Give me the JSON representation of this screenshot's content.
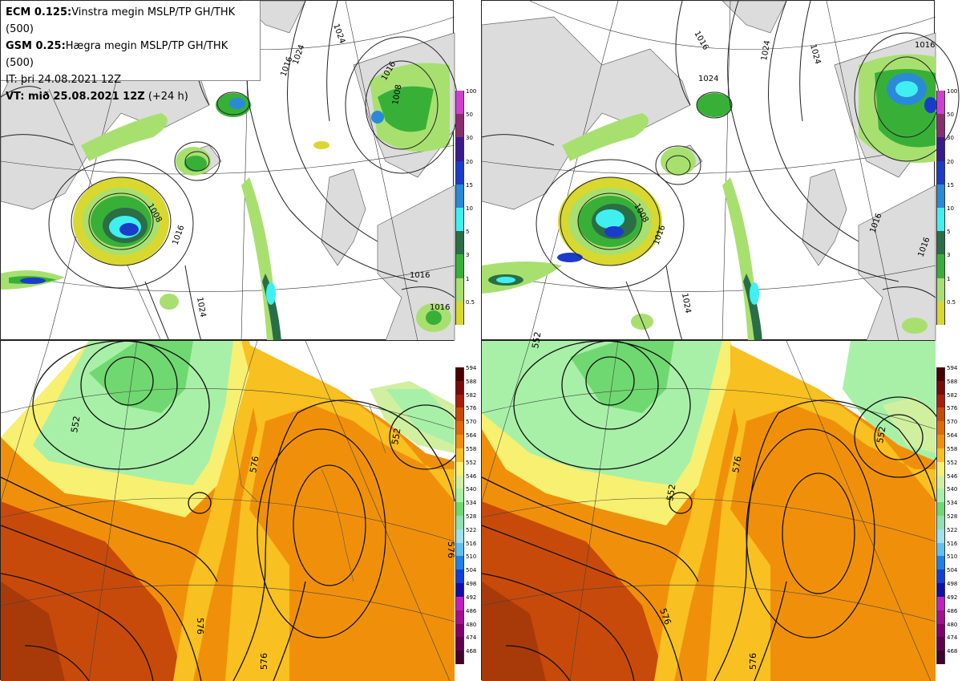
{
  "header": {
    "line1_bold": "ECM 0.125:",
    "line1_text": "Vinstra megin MSLP/TP GH/THK (500)",
    "line2_bold": "GSM 0.25:",
    "line2_text": "Hægra megin MSLP/TP GH/THK (500)",
    "line3_text": "IT: þri 24.08.2021 12Z",
    "line4_bold": "VT: mið 25.08.2021 12Z",
    "line4_text": " (+24 h)"
  },
  "precip_scale": {
    "labels": [
      "100",
      "50",
      "30",
      "20",
      "15",
      "10",
      "5",
      "3",
      "1",
      "0.5"
    ],
    "colors": [
      "#d040d0",
      "#8a2d6e",
      "#3a1a8c",
      "#1a3cc8",
      "#2a8ad8",
      "#40f0f0",
      "#2a6e46",
      "#38b038",
      "#a8e070",
      "#d8d830"
    ]
  },
  "thickness_scale": {
    "labels": [
      "594",
      "588",
      "582",
      "576",
      "570",
      "564",
      "558",
      "552",
      "546",
      "540",
      "534",
      "528",
      "522",
      "516",
      "510",
      "504",
      "498",
      "492",
      "486",
      "480",
      "474",
      "468"
    ],
    "colors": [
      "#4a0000",
      "#7a0a0a",
      "#a81e0a",
      "#c84a0a",
      "#e06a0a",
      "#f0900a",
      "#f8c020",
      "#f8f070",
      "#d0f0a0",
      "#a8f0a8",
      "#70d870",
      "#90e0b0",
      "#a0e0f0",
      "#60c0f0",
      "#2080e8",
      "#1040d8",
      "#1010a8",
      "#c020c0",
      "#a01090",
      "#800070",
      "#600050",
      "#400030"
    ]
  },
  "maps": {
    "top_left": {
      "mslp_labels": [
        "1016",
        "1024",
        "1024",
        "1008",
        "1016",
        "1024",
        "1016",
        "1016",
        "1016",
        "1008"
      ]
    },
    "top_right": {
      "mslp_labels": [
        "1016",
        "1024",
        "1024",
        "1024",
        "1016",
        "1008",
        "1016",
        "1024",
        "1016",
        "1016"
      ]
    },
    "bottom_left": {
      "gh_labels": [
        "552",
        "576",
        "576",
        "576",
        "576",
        "552"
      ]
    },
    "bottom_right": {
      "gh_labels": [
        "552",
        "552",
        "576",
        "576",
        "576",
        "552"
      ]
    }
  }
}
